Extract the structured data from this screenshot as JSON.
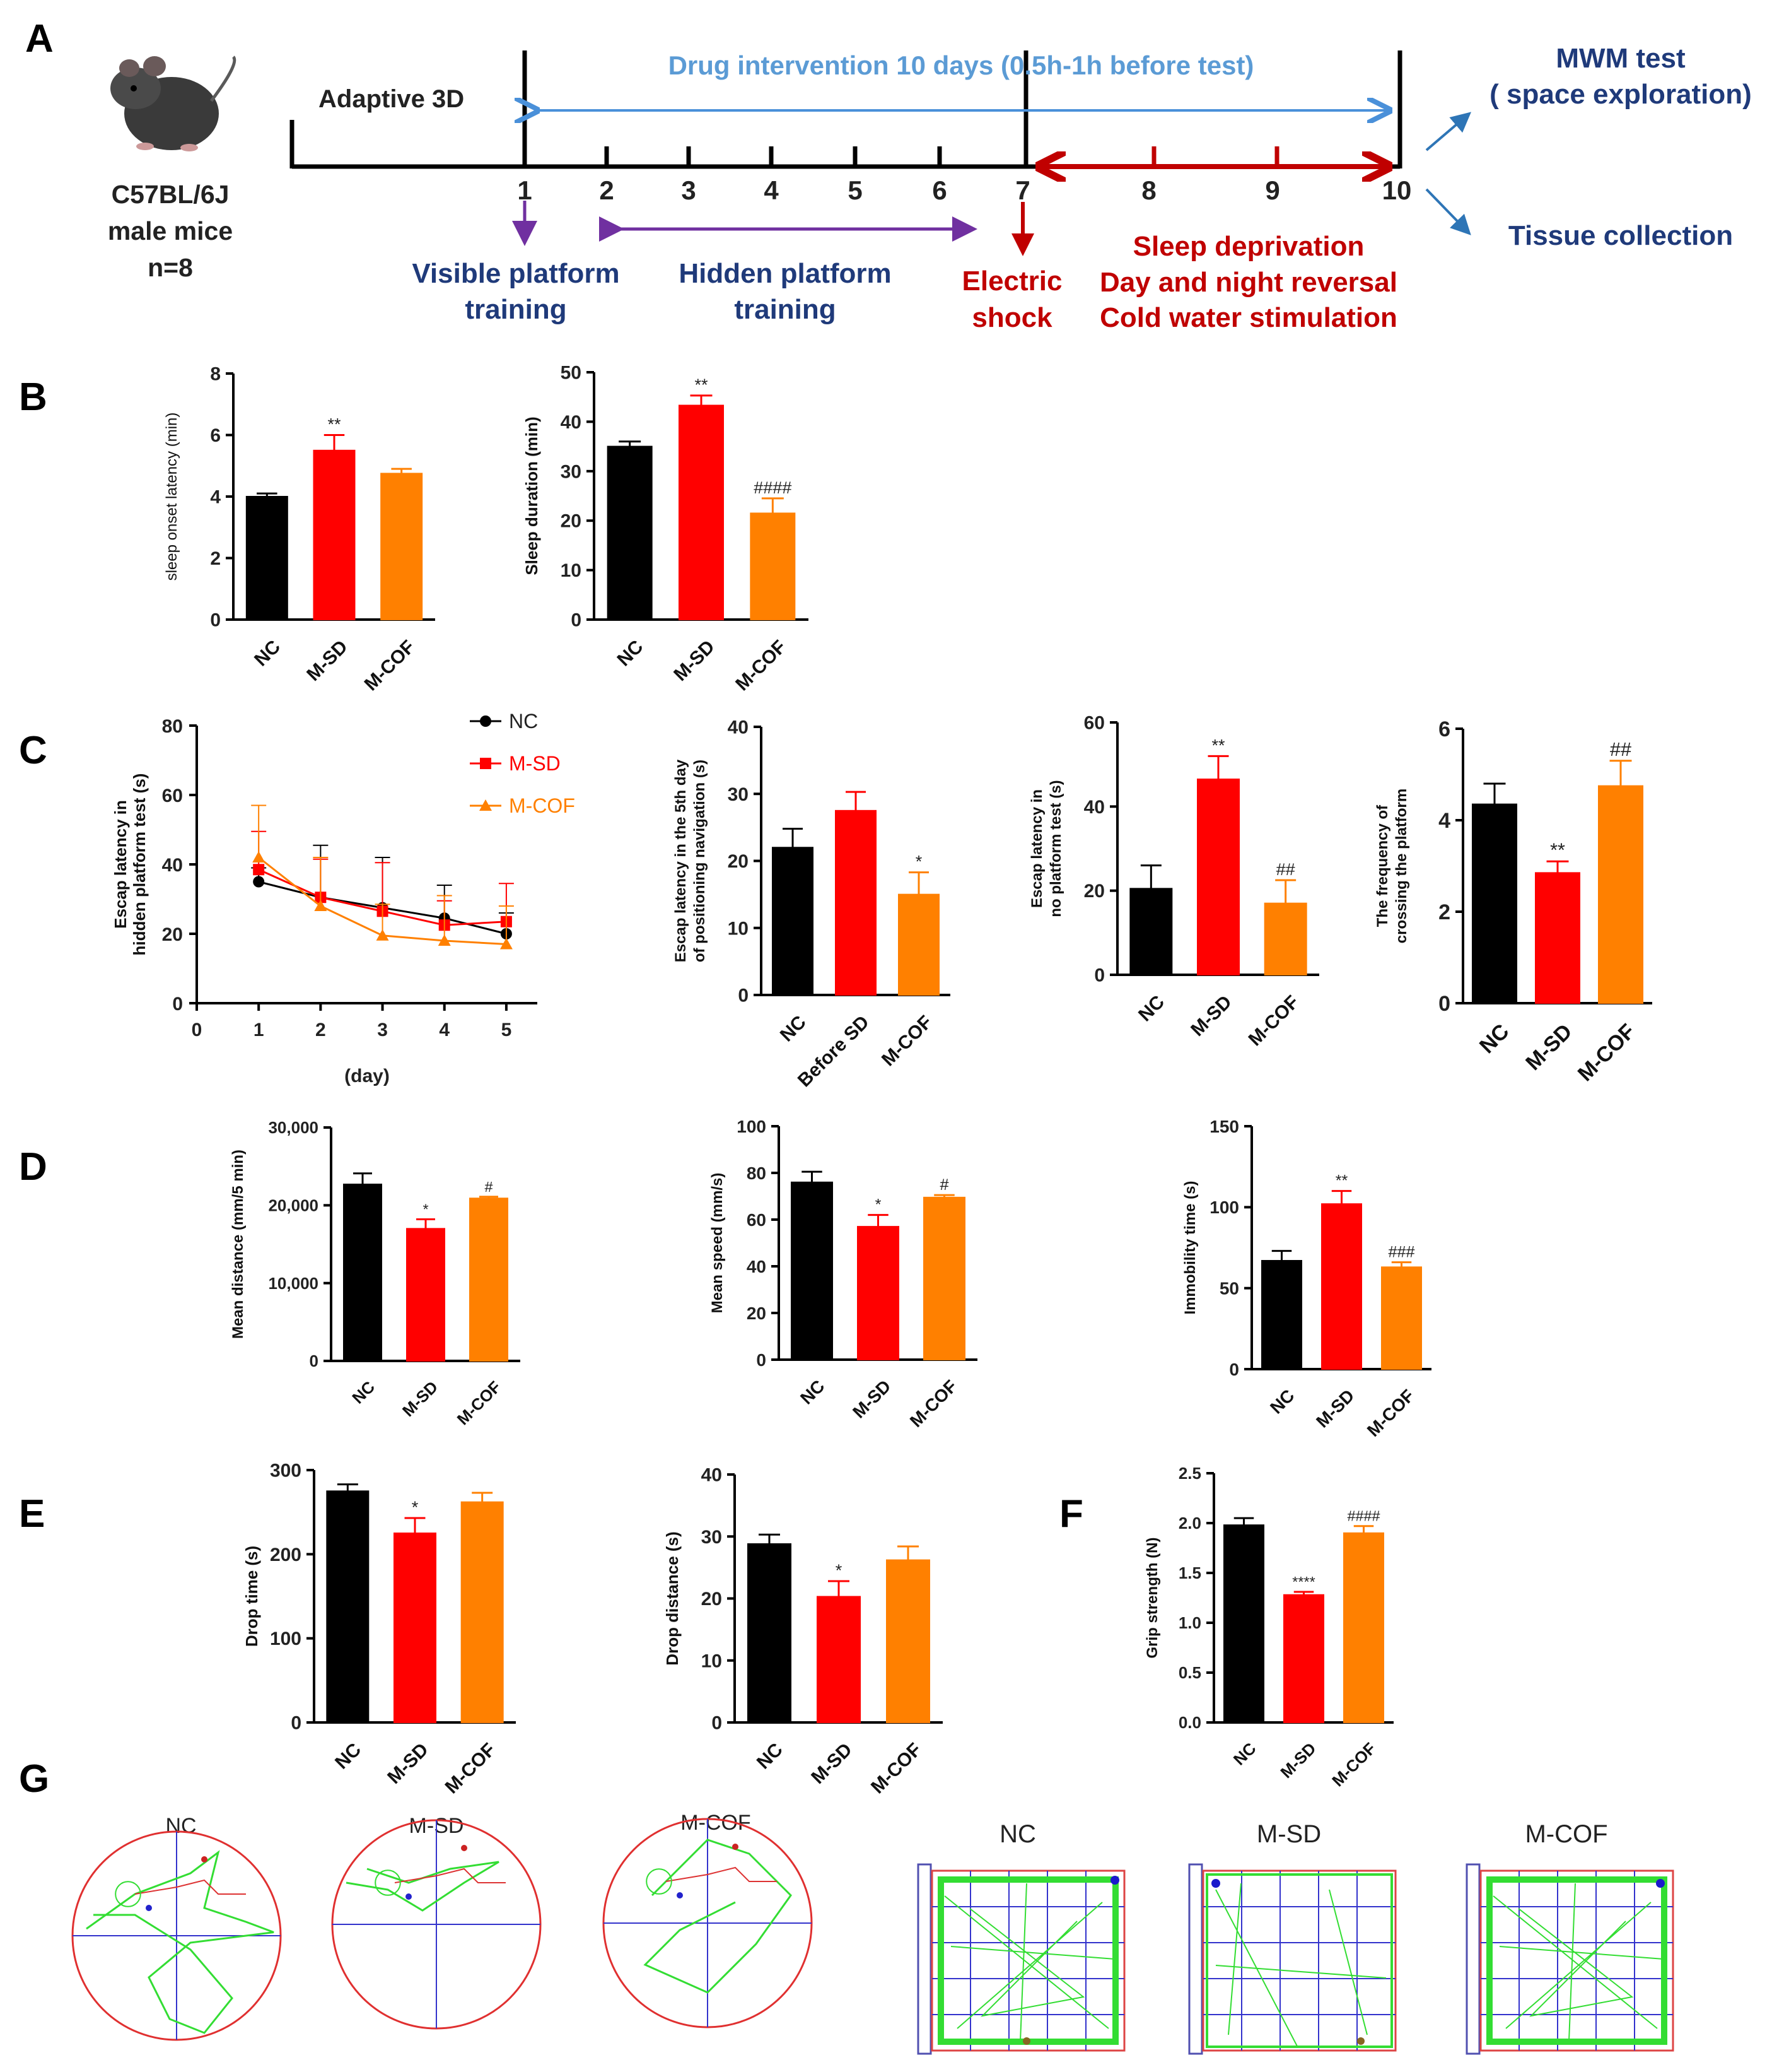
{
  "colors": {
    "nc": "#000000",
    "msd": "#ff0000",
    "mcof": "#ff8000",
    "blue_text": "#203080",
    "red_text": "#c00000",
    "arrow_blue": "#4a90d9",
    "arrow_purple": "#7030a0",
    "arrow_dark_red": "#c00000",
    "track_green": "#33dd33",
    "track_red": "#dd3333",
    "grid_blue": "#3333cc",
    "grid_red": "#dd4444"
  },
  "panel_labels": [
    "A",
    "B",
    "C",
    "D",
    "E",
    "F",
    "G"
  ],
  "timeline": {
    "mouse_label": [
      "C57BL/6J",
      "male mice",
      "n=8"
    ],
    "adaptive": "Adaptive 3D",
    "drug": "Drug intervention 10 days (0.5h-1h before test)",
    "days": [
      "1",
      "2",
      "3",
      "4",
      "5",
      "6",
      "7",
      "8",
      "9",
      "10"
    ],
    "visible": [
      "Visible platform",
      "training"
    ],
    "hidden": [
      "Hidden platform",
      "training"
    ],
    "shock": [
      "Electric",
      "shock"
    ],
    "stress": [
      "Sleep deprivation",
      "Day and night reversal",
      "Cold water stimulation"
    ],
    "mwm": [
      "MWM test",
      "( space exploration)"
    ],
    "tissue": "Tissue collection"
  },
  "chart_data": [
    {
      "id": "B1",
      "type": "bar",
      "ylabel": "sleep onset latency (min)",
      "categories": [
        "NC",
        "M-SD",
        "M-COF"
      ],
      "values": [
        4.0,
        5.5,
        4.75
      ],
      "errors": [
        0.1,
        0.5,
        0.15
      ],
      "ylim": [
        0,
        8
      ],
      "ticks": [
        0,
        2,
        4,
        6,
        8
      ],
      "annotations": [
        "",
        "**",
        ""
      ],
      "xlabel": ""
    },
    {
      "id": "B2",
      "type": "bar",
      "ylabel": "Sleep duration (min)",
      "categories": [
        "NC",
        "M-SD",
        "M-COF"
      ],
      "values": [
        35,
        43.3,
        21.5
      ],
      "errors": [
        1,
        2,
        3
      ],
      "ylim": [
        0,
        50
      ],
      "ticks": [
        0,
        10,
        20,
        30,
        40,
        50
      ],
      "annotations": [
        "",
        "**",
        "####"
      ],
      "xlabel": ""
    },
    {
      "id": "C1",
      "type": "line",
      "ylabel": [
        "Escap latency in",
        "hidden platform test (s)"
      ],
      "xlabel": "(day)",
      "x": [
        1,
        2,
        3,
        4,
        5
      ],
      "xlim": [
        0,
        5.5
      ],
      "xticks": [
        0,
        1,
        2,
        3,
        4,
        5
      ],
      "ylim": [
        0,
        80
      ],
      "ticks": [
        0,
        20,
        40,
        60,
        80
      ],
      "series": [
        {
          "name": "NC",
          "values": [
            35,
            30.5,
            27.5,
            24.5,
            20
          ],
          "errors": [
            4,
            15,
            14.5,
            9.5,
            6
          ]
        },
        {
          "name": "M-SD",
          "values": [
            38.5,
            30.5,
            26.5,
            22.5,
            23.5
          ],
          "errors": [
            11,
            11,
            14,
            7,
            11
          ]
        },
        {
          "name": "M-COF",
          "values": [
            42,
            28,
            19.5,
            18,
            17
          ],
          "errors": [
            15,
            14,
            9,
            13,
            11
          ]
        }
      ]
    },
    {
      "id": "C2",
      "type": "bar",
      "ylabel": [
        "Escap latency in the 5th day",
        "of positioning navigation (s)"
      ],
      "categories": [
        "NC",
        "Before SD",
        "M-COF"
      ],
      "values": [
        22,
        27.5,
        15
      ],
      "errors": [
        2.8,
        2.8,
        3.3
      ],
      "ylim": [
        0,
        40
      ],
      "ticks": [
        0,
        10,
        20,
        30,
        40
      ],
      "annotations": [
        "",
        "",
        "*"
      ],
      "xlabel": ""
    },
    {
      "id": "C3",
      "type": "bar",
      "ylabel": [
        "Escap latency in",
        "no platform test (s)"
      ],
      "categories": [
        "NC",
        "M-SD",
        "M-COF"
      ],
      "values": [
        20.5,
        46.5,
        17
      ],
      "errors": [
        5.5,
        5.5,
        5.5
      ],
      "ylim": [
        0,
        60
      ],
      "ticks": [
        0,
        20,
        40,
        60
      ],
      "annotations": [
        "",
        "**",
        "##"
      ],
      "xlabel": ""
    },
    {
      "id": "C4",
      "type": "bar",
      "ylabel": [
        "The frequency of",
        "crossing the platform"
      ],
      "categories": [
        "NC",
        "M-SD",
        "M-COF"
      ],
      "values": [
        4.35,
        2.85,
        4.75
      ],
      "errors": [
        0.45,
        0.25,
        0.55
      ],
      "ylim": [
        0,
        6
      ],
      "ticks": [
        0,
        2,
        4,
        6
      ],
      "annotations": [
        "",
        "**",
        "##"
      ],
      "xlabel": ""
    },
    {
      "id": "D1",
      "type": "bar",
      "ylabel": "Mean distance (mm/5 min)",
      "categories": [
        "NC",
        "M-SD",
        "M-COF"
      ],
      "values": [
        22700,
        17000,
        20900
      ],
      "errors": [
        1400,
        1200,
        200
      ],
      "ylim": [
        0,
        30000
      ],
      "ticks": [
        0,
        10000,
        20000,
        30000
      ],
      "tick_labels": [
        "0",
        "10,000",
        "20,000",
        "30,000"
      ],
      "annotations": [
        "",
        "*",
        "#"
      ],
      "xlabel": ""
    },
    {
      "id": "D2",
      "type": "bar",
      "ylabel": "Mean speed (mm/s)",
      "categories": [
        "NC",
        "M-SD",
        "M-COF"
      ],
      "values": [
        76,
        57,
        69.5
      ],
      "errors": [
        4.5,
        5,
        1
      ],
      "ylim": [
        0,
        100
      ],
      "ticks": [
        0,
        20,
        40,
        60,
        80,
        100
      ],
      "annotations": [
        "",
        "*",
        "#"
      ],
      "xlabel": ""
    },
    {
      "id": "D3",
      "type": "bar",
      "ylabel": "Immobility time (s)",
      "categories": [
        "NC",
        "M-SD",
        "M-COF"
      ],
      "values": [
        67,
        102,
        63
      ],
      "errors": [
        6,
        8,
        3
      ],
      "ylim": [
        0,
        150
      ],
      "ticks": [
        0,
        50,
        100,
        150
      ],
      "annotations": [
        "",
        "**",
        "###"
      ],
      "xlabel": ""
    },
    {
      "id": "E1",
      "type": "bar",
      "ylabel": "Drop time (s)",
      "categories": [
        "NC",
        "M-SD",
        "M-COF"
      ],
      "values": [
        275,
        225,
        262
      ],
      "errors": [
        8,
        18,
        11
      ],
      "ylim": [
        0,
        300
      ],
      "ticks": [
        0,
        100,
        200,
        300
      ],
      "annotations": [
        "",
        "*",
        ""
      ],
      "xlabel": ""
    },
    {
      "id": "E2",
      "type": "bar",
      "ylabel": "Drop distance (s)",
      "categories": [
        "NC",
        "M-SD",
        "M-COF"
      ],
      "values": [
        28.8,
        20.3,
        26.2
      ],
      "errors": [
        1.5,
        2.5,
        2.2
      ],
      "ylim": [
        0,
        40
      ],
      "ticks": [
        0,
        10,
        20,
        30,
        40
      ],
      "annotations": [
        "",
        "*",
        ""
      ],
      "xlabel": ""
    },
    {
      "id": "F1",
      "type": "bar",
      "ylabel": "Grip strength (N)",
      "categories": [
        "NC",
        "M-SD",
        "M-COF"
      ],
      "values": [
        1.98,
        1.28,
        1.9
      ],
      "errors": [
        0.07,
        0.03,
        0.07
      ],
      "ylim": [
        0,
        2.5
      ],
      "ticks": [
        0,
        0.5,
        1.0,
        1.5,
        2.0,
        2.5
      ],
      "tick_labels": [
        "0.0",
        "0.5",
        "1.0",
        "1.5",
        "2.0",
        "2.5"
      ],
      "annotations": [
        "",
        "****",
        "####"
      ],
      "xlabel": ""
    }
  ],
  "track_titles_circle": [
    "NC",
    "M-SD",
    "M-COF"
  ],
  "track_titles_square": [
    "NC",
    "M-SD",
    "M-COF"
  ]
}
